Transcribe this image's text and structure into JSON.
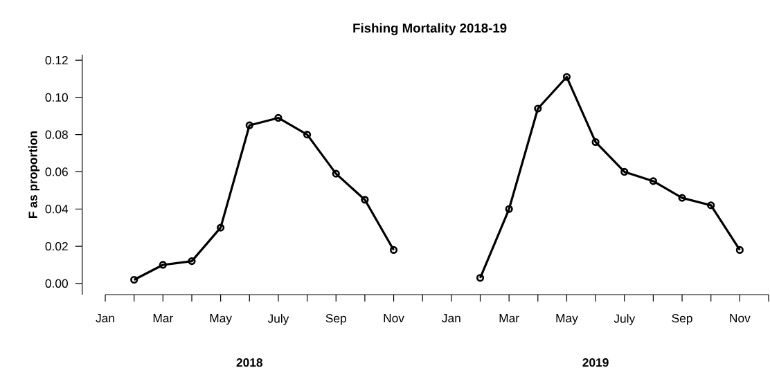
{
  "chart_data": {
    "type": "line",
    "title": "Fishing Mortality 2018-19",
    "ylabel": "F as proportion",
    "categories": [
      "Jan",
      null,
      "Mar",
      null,
      "May",
      null,
      "July",
      null,
      "Sep",
      null,
      "Nov",
      null,
      "Jan",
      null,
      "Mar",
      null,
      "May",
      null,
      "July",
      null,
      "Sep",
      null,
      "Nov",
      null
    ],
    "values": [
      null,
      0.002,
      0.01,
      0.012,
      0.03,
      0.085,
      0.089,
      0.08,
      0.059,
      0.045,
      0.018,
      null,
      null,
      0.003,
      0.04,
      0.094,
      0.111,
      0.076,
      0.06,
      0.055,
      0.046,
      0.042,
      0.018,
      null
    ],
    "color": "#000000",
    "marker": "circle",
    "line_style": "solid",
    "grid": false,
    "ylim": [
      -0.006,
      0.123
    ],
    "yticks": [
      {
        "value": 0,
        "label": "0.00"
      },
      {
        "value": 0.02,
        "label": "0.02"
      },
      {
        "value": 0.04,
        "label": "0.04"
      },
      {
        "value": 0.06,
        "label": "0.06"
      },
      {
        "value": 0.08,
        "label": "0.08"
      },
      {
        "value": 0.1,
        "label": "0.10"
      },
      {
        "value": 0.12,
        "label": "0.12"
      }
    ],
    "annotations": [
      "2018",
      "2019"
    ]
  }
}
